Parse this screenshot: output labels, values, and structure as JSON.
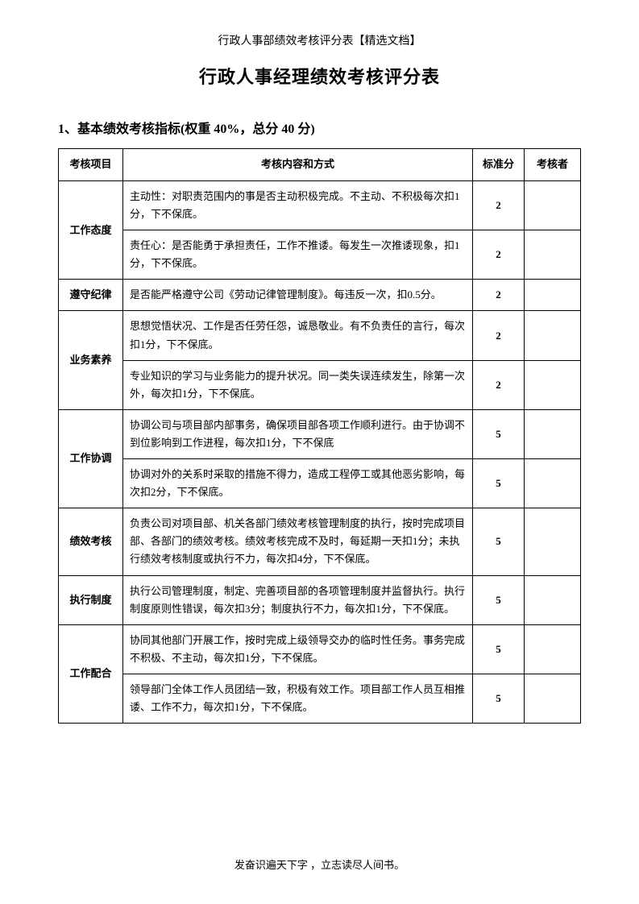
{
  "header_note": "行政人事部绩效考核评分表【精选文档】",
  "main_title": "行政人事经理绩效考核评分表",
  "section_title": "1、基本绩效考核指标(权重 40%，总分 40 分)",
  "table": {
    "headers": {
      "item": "考核项目",
      "content": "考核内容和方式",
      "score": "标准分",
      "examiner": "考核者"
    },
    "rows": [
      {
        "item": "工作态度",
        "rowspan": 2,
        "content": "主动性：对职责范围内的事是否主动积极完成。不主动、不积极每次扣1分，下不保底。",
        "score": "2"
      },
      {
        "content": "责任心：是否能勇于承担责任，工作不推诿。每发生一次推诿现象，扣1分，下不保底。",
        "score": "2"
      },
      {
        "item": "遵守纪律",
        "rowspan": 1,
        "content": "是否能严格遵守公司《劳动记律管理制度》。每违反一次，扣0.5分。",
        "score": "2"
      },
      {
        "item": "业务素养",
        "rowspan": 2,
        "content": "思想觉悟状况、工作是否任劳任怨，诚恳敬业。有不负责任的言行，每次扣1分，下不保底。",
        "score": "2"
      },
      {
        "content": "专业知识的学习与业务能力的提升状况。同一类失误连续发生，除第一次外，每次扣1分，下不保底。",
        "score": "2"
      },
      {
        "item": "工作协调",
        "rowspan": 2,
        "content": "协调公司与项目部内部事务，确保项目部各项工作顺利进行。由于协调不到位影响到工作进程，每次扣1分，下不保底",
        "score": "5"
      },
      {
        "content": "协调对外的关系时采取的措施不得力，造成工程停工或其他恶劣影响，每次扣2分，下不保底。",
        "score": "5"
      },
      {
        "item": "绩效考核",
        "rowspan": 1,
        "content": "负责公司对项目部、机关各部门绩效考核管理制度的执行，按时完成项目部、各部门的绩效考核。绩效考核完成不及时，每延期一天扣1分；未执行绩效考核制度或执行不力，每次扣4分，下不保底。",
        "score": "5"
      },
      {
        "item": "执行制度",
        "rowspan": 1,
        "content": "执行公司管理制度，制定、完善项目部的各项管理制度并监督执行。执行制度原则性错误，每次扣3分；制度执行不力，每次扣1分，下不保底。",
        "score": "5"
      },
      {
        "item": "工作配合",
        "rowspan": 2,
        "content": "协同其他部门开展工作，按时完成上级领导交办的临时性任务。事务完成不积极、不主动，每次扣1分，下不保底。",
        "score": "5"
      },
      {
        "content": "领导部门全体工作人员团结一致，积极有效工作。项目部工作人员互相推诿、工作不力，每次扣1分，下不保底。",
        "score": "5"
      }
    ]
  },
  "footer_note": "发奋识遍天下字 ，立志读尽人间书。"
}
